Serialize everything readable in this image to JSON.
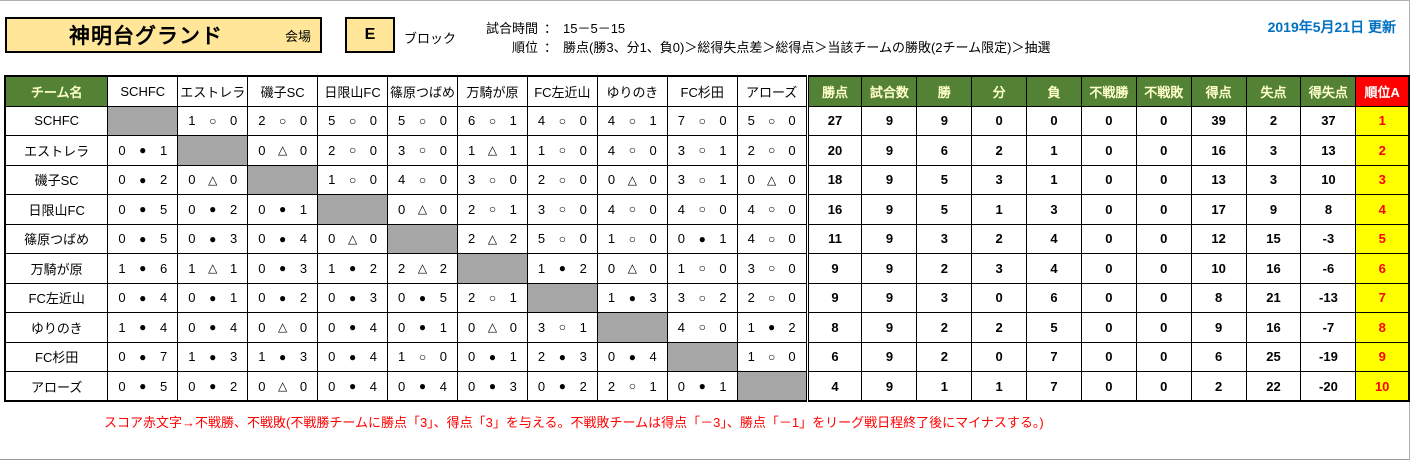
{
  "header": {
    "venue_name": "神明台グランド",
    "venue_label": "会場",
    "block_letter": "E",
    "block_label": "ブロック",
    "colon": "：",
    "match_time_label": "試合時間",
    "match_time_value": "15－5－15",
    "ranking_label": "順位",
    "ranking_rule": "勝点(勝3、分1、負0)＞総得失点差＞総得点＞当該チームの勝敗(2チーム限定)＞抽選",
    "updated": "2019年5月21日 更新"
  },
  "table": {
    "team_col_header": "チーム名",
    "opponents": [
      "SCHFC",
      "エストレラ",
      "磯子SC",
      "日限山FC",
      "篠原つばめ",
      "万騎が原",
      "FC左近山",
      "ゆりのき",
      "FC杉田",
      "アローズ"
    ],
    "stat_headers": [
      "勝点",
      "試合数",
      "勝",
      "分",
      "負",
      "不戦勝",
      "不戦敗",
      "得点",
      "失点",
      "得失点"
    ],
    "rank_header": "順位A",
    "symbols": {
      "win": "○",
      "draw": "△",
      "loss": "●"
    },
    "rows": [
      {
        "team": "SCHFC",
        "results": [
          "",
          "1 ○ 0",
          "2 ○ 0",
          "5 ○ 0",
          "5 ○ 0",
          "6 ○ 1",
          "4 ○ 0",
          "4 ○ 1",
          "7 ○ 0",
          "5 ○ 0"
        ],
        "stats": [
          "27",
          "9",
          "9",
          "0",
          "0",
          "0",
          "0",
          "39",
          "2",
          "37"
        ],
        "rank": "1"
      },
      {
        "team": "エストレラ",
        "results": [
          "0 ● 1",
          "",
          "0 △ 0",
          "2 ○ 0",
          "3 ○ 0",
          "1 △ 1",
          "1 ○ 0",
          "4 ○ 0",
          "3 ○ 1",
          "2 ○ 0"
        ],
        "stats": [
          "20",
          "9",
          "6",
          "2",
          "1",
          "0",
          "0",
          "16",
          "3",
          "13"
        ],
        "rank": "2"
      },
      {
        "team": "磯子SC",
        "results": [
          "0 ● 2",
          "0 △ 0",
          "",
          "1 ○ 0",
          "4 ○ 0",
          "3 ○ 0",
          "2 ○ 0",
          "0 △ 0",
          "3 ○ 1",
          "0 △ 0"
        ],
        "stats": [
          "18",
          "9",
          "5",
          "3",
          "1",
          "0",
          "0",
          "13",
          "3",
          "10"
        ],
        "rank": "3"
      },
      {
        "team": "日限山FC",
        "results": [
          "0 ● 5",
          "0 ● 2",
          "0 ● 1",
          "",
          "0 △ 0",
          "2 ○ 1",
          "3 ○ 0",
          "4 ○ 0",
          "4 ○ 0",
          "4 ○ 0"
        ],
        "stats": [
          "16",
          "9",
          "5",
          "1",
          "3",
          "0",
          "0",
          "17",
          "9",
          "8"
        ],
        "rank": "4"
      },
      {
        "team": "篠原つばめ",
        "results": [
          "0 ● 5",
          "0 ● 3",
          "0 ● 4",
          "0 △ 0",
          "",
          "2 △ 2",
          "5 ○ 0",
          "1 ○ 0",
          "0 ● 1",
          "4 ○ 0"
        ],
        "stats": [
          "11",
          "9",
          "3",
          "2",
          "4",
          "0",
          "0",
          "12",
          "15",
          "-3"
        ],
        "rank": "5"
      },
      {
        "team": "万騎が原",
        "results": [
          "1 ● 6",
          "1 △ 1",
          "0 ● 3",
          "1 ● 2",
          "2 △ 2",
          "",
          "1 ● 2",
          "0 △ 0",
          "1 ○ 0",
          "3 ○ 0"
        ],
        "stats": [
          "9",
          "9",
          "2",
          "3",
          "4",
          "0",
          "0",
          "10",
          "16",
          "-6"
        ],
        "rank": "6"
      },
      {
        "team": "FC左近山",
        "results": [
          "0 ● 4",
          "0 ● 1",
          "0 ● 2",
          "0 ● 3",
          "0 ● 5",
          "2 ○ 1",
          "",
          "1 ● 3",
          "3 ○ 2",
          "2 ○ 0"
        ],
        "stats": [
          "9",
          "9",
          "3",
          "0",
          "6",
          "0",
          "0",
          "8",
          "21",
          "-13"
        ],
        "rank": "7"
      },
      {
        "team": "ゆりのき",
        "results": [
          "1 ● 4",
          "0 ● 4",
          "0 △ 0",
          "0 ● 4",
          "0 ● 1",
          "0 △ 0",
          "3 ○ 1",
          "",
          "4 ○ 0",
          "1 ● 2"
        ],
        "stats": [
          "8",
          "9",
          "2",
          "2",
          "5",
          "0",
          "0",
          "9",
          "16",
          "-7"
        ],
        "rank": "8"
      },
      {
        "team": "FC杉田",
        "results": [
          "0 ● 7",
          "1 ● 3",
          "1 ● 3",
          "0 ● 4",
          "1 ○ 0",
          "0 ● 1",
          "2 ● 3",
          "0 ● 4",
          "",
          "1 ○ 0"
        ],
        "stats": [
          "6",
          "9",
          "2",
          "0",
          "7",
          "0",
          "0",
          "6",
          "25",
          "-19"
        ],
        "rank": "9"
      },
      {
        "team": "アローズ",
        "results": [
          "0 ● 5",
          "0 ● 2",
          "0 △ 0",
          "0 ● 4",
          "0 ● 4",
          "0 ● 3",
          "0 ● 2",
          "2 ○ 1",
          "0 ● 1",
          ""
        ],
        "stats": [
          "4",
          "9",
          "1",
          "1",
          "7",
          "0",
          "0",
          "2",
          "22",
          "-20"
        ],
        "rank": "10"
      }
    ]
  },
  "footer_note": "スコア赤文字→不戦勝、不戦敗(不戦勝チームに勝点「3」、得点「3」を与える。不戦敗チームは得点「－3」、勝点「－1」をリーグ戦日程終了後にマイナスする。)",
  "colors": {
    "header_green": "#548235",
    "header_green_text": "#FFFFCC",
    "rank_header_bg": "#FF0000",
    "rank_cell_bg": "#FFFF00",
    "rank_cell_text": "#FF0000",
    "diagonal_gray": "#A6A6A6",
    "venue_box_bg": "#FFE699",
    "updated_text": "#0070C0",
    "note_text": "#FF0000"
  }
}
